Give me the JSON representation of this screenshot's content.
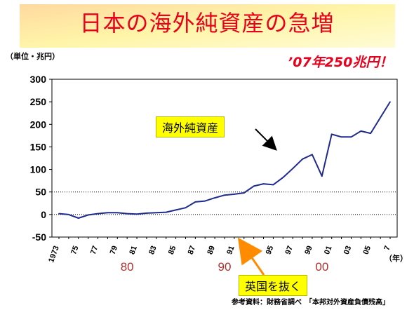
{
  "header": {
    "title": "日本の海外純資産の急増",
    "unit_label": "（単位・兆円）",
    "callout": "’07年250兆円！",
    "source": "参考資料：財務省調べ　「本邦対外資産負債残高」"
  },
  "annotations": {
    "series_label": "海外純資産",
    "uk_label": "英国を抜く"
  },
  "decade_labels": [
    "80",
    "90",
    "00"
  ],
  "colors": {
    "title": "#e8001c",
    "series_line": "#1f2a8c",
    "callout_arrow": "#ff8c00",
    "label_box": "#ffff00",
    "decade_text": "#b03030"
  },
  "chart_data": {
    "type": "line",
    "ylim": [
      -50,
      300
    ],
    "yticks": [
      -50,
      0,
      50,
      100,
      150,
      200,
      250,
      300
    ],
    "reference_lines": [
      0,
      50
    ],
    "xlabel_unit": "（年）",
    "x": [
      1973,
      1974,
      1975,
      1976,
      1977,
      1978,
      1979,
      1980,
      1981,
      1982,
      1983,
      1984,
      1985,
      1986,
      1987,
      1988,
      1989,
      1990,
      1991,
      1992,
      1993,
      1994,
      1995,
      1996,
      1997,
      1998,
      1999,
      2000,
      2001,
      2002,
      2003,
      2004,
      2005,
      2006,
      2007
    ],
    "xtick_labels": [
      "1973",
      "75",
      "77",
      "79",
      "81",
      "83",
      "85",
      "87",
      "89",
      "91",
      "93",
      "95",
      "97",
      "99",
      "01",
      "03",
      "05",
      "7"
    ],
    "series": [
      {
        "values": [
          2,
          0,
          -8,
          -1,
          2,
          4,
          4,
          2,
          1,
          3,
          4,
          5,
          10,
          15,
          28,
          30,
          37,
          43,
          45,
          48,
          63,
          68,
          66,
          82,
          102,
          123,
          133,
          85,
          178,
          172,
          172,
          185,
          180,
          215,
          250
        ]
      }
    ]
  }
}
